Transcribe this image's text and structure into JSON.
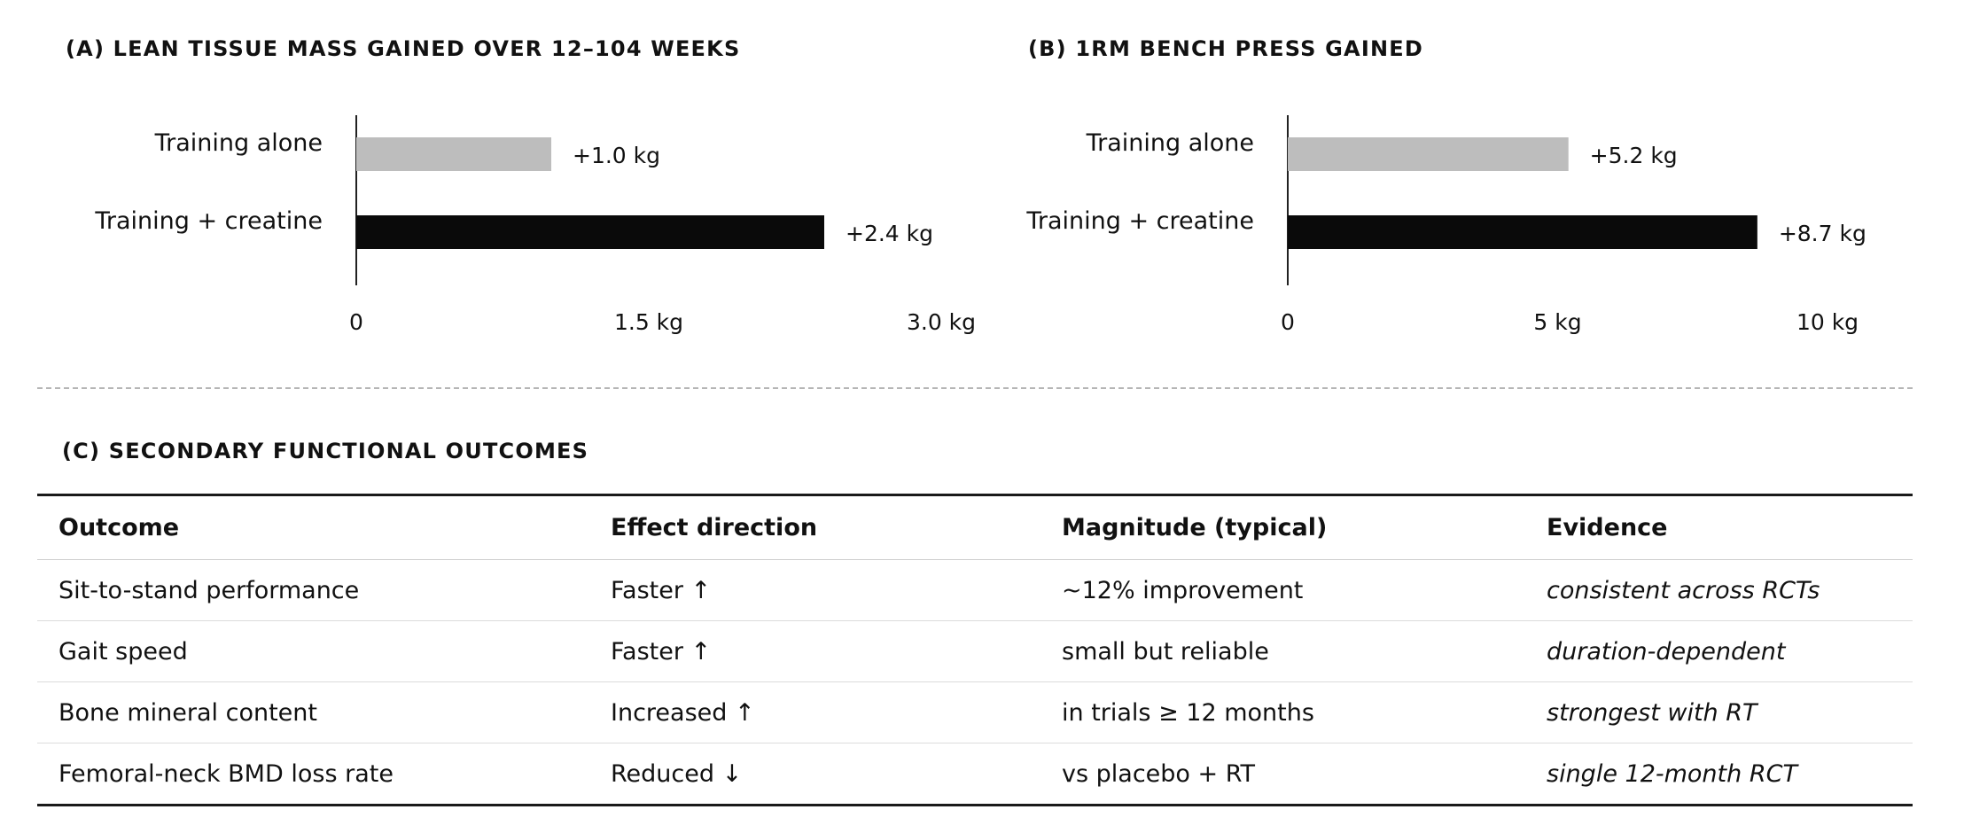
{
  "chart_data": [
    {
      "type": "bar",
      "orientation": "horizontal",
      "title": "(A)  LEAN TISSUE MASS GAINED OVER 12–104 WEEKS",
      "categories": [
        "Training alone",
        "Training + creatine"
      ],
      "values": [
        1.0,
        2.4
      ],
      "data_labels": [
        "+1.0 kg",
        "+2.4 kg"
      ],
      "colors": [
        "#bdbdbd",
        "#0a0a0a"
      ],
      "xlim": [
        0,
        3.0
      ],
      "xticks": [
        0,
        1.5,
        3.0
      ],
      "xtick_labels": [
        "0",
        "1.5 kg",
        "3.0 kg"
      ],
      "grid": false
    },
    {
      "type": "bar",
      "orientation": "horizontal",
      "title": "(B)  1RM BENCH PRESS GAINED",
      "categories": [
        "Training alone",
        "Training + creatine"
      ],
      "values": [
        5.2,
        8.7
      ],
      "data_labels": [
        "+5.2 kg",
        "+8.7 kg"
      ],
      "colors": [
        "#bdbdbd",
        "#0a0a0a"
      ],
      "xlim": [
        0,
        10
      ],
      "xticks": [
        0,
        5,
        10
      ],
      "xtick_labels": [
        "0",
        "5 kg",
        "10 kg"
      ],
      "grid": false
    }
  ],
  "table": {
    "title": "(C)  SECONDARY FUNCTIONAL OUTCOMES",
    "headers": [
      "Outcome",
      "Effect direction",
      "Magnitude (typical)",
      "Evidence"
    ],
    "rows": [
      [
        "Sit-to-stand performance",
        "Faster ↑",
        "~12% improvement",
        "consistent across RCTs"
      ],
      [
        "Gait speed",
        "Faster ↑",
        "small but reliable",
        "duration-dependent"
      ],
      [
        "Bone mineral content",
        "Increased ↑",
        "in trials ≥ 12 months",
        "strongest with RT"
      ],
      [
        "Femoral-neck BMD loss rate",
        "Reduced ↓",
        "vs placebo + RT",
        "single 12-month RCT"
      ]
    ]
  }
}
